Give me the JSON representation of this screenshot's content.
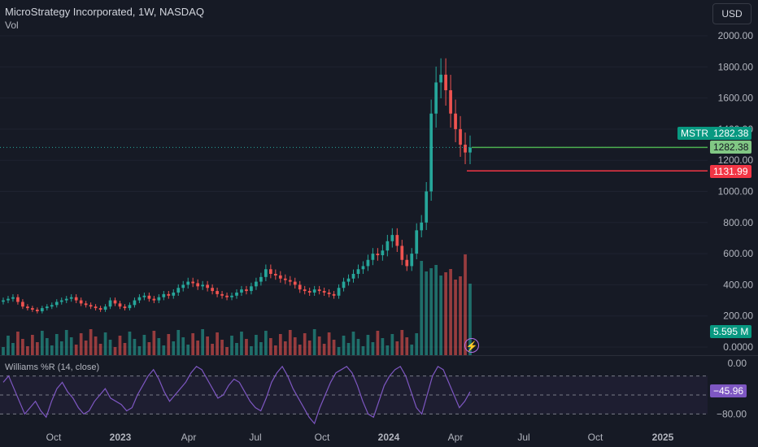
{
  "header": {
    "title": "MicroStrategy Incorporated, 1W, NASDAQ",
    "volume_label": "Vol",
    "currency_button": "USD"
  },
  "price_axis": {
    "labels": [
      "2000.00",
      "1800.00",
      "1600.00",
      "1400.00",
      "1200.00",
      "1000.00",
      "800.00",
      "600.00",
      "400.00",
      "200.00",
      "0.0000"
    ]
  },
  "tags": {
    "symbol": "MSTR",
    "last_price": "1282.38",
    "last_price_2": "1282.38",
    "prev_low": "1131.99",
    "volume": "5.595 M",
    "williams_value": "−45.96"
  },
  "indicator": {
    "title": "Williams %R (14, close)",
    "axis_labels": [
      "0.00",
      "−80.00"
    ],
    "band_upper": -20,
    "band_lower": -80
  },
  "time_axis": {
    "labels": [
      "Oct",
      "2023",
      "Apr",
      "Jul",
      "Oct",
      "2024",
      "Apr",
      "Jul",
      "Oct",
      "2025"
    ]
  },
  "colors": {
    "up": "#26a69a",
    "down": "#ef5350",
    "background": "#161a25",
    "williams_line": "#7e57c2",
    "last_line": "#4caf50",
    "low_line": "#f23645"
  },
  "chart_data": {
    "type": "candlestick",
    "title": "MicroStrategy Incorporated, 1W, NASDAQ",
    "interval": "1W",
    "y_range": [
      0,
      2100
    ],
    "x_labels": [
      "Oct",
      "2023",
      "Apr",
      "Jul",
      "Oct",
      "2024",
      "Apr",
      "Jul",
      "Oct",
      "2025"
    ],
    "candles_close_approx": [
      300,
      310,
      320,
      290,
      260,
      250,
      240,
      230,
      250,
      260,
      270,
      290,
      300,
      310,
      320,
      300,
      280,
      270,
      260,
      250,
      240,
      260,
      300,
      280,
      260,
      250,
      270,
      300,
      320,
      330,
      310,
      300,
      320,
      340,
      330,
      350,
      380,
      400,
      420,
      410,
      390,
      400,
      380,
      360,
      340,
      330,
      320,
      330,
      350,
      370,
      360,
      390,
      420,
      450,
      500,
      470,
      460,
      440,
      430,
      420,
      400,
      370,
      360,
      350,
      370,
      360,
      350,
      340,
      330,
      380,
      420,
      440,
      470,
      500,
      520,
      560,
      600,
      590,
      620,
      680,
      720,
      650,
      560,
      520,
      600,
      750,
      800,
      1000,
      1500,
      1700,
      1750,
      1650,
      1500,
      1400,
      1300,
      1250,
      1282
    ],
    "last_price": 1282.38,
    "williams_r": {
      "name": "Williams %R (14, close)",
      "last_value": -45.96,
      "values": [
        -30,
        -20,
        -40,
        -60,
        -80,
        -70,
        -60,
        -75,
        -85,
        -60,
        -40,
        -30,
        -45,
        -55,
        -70,
        -80,
        -75,
        -60,
        -50,
        -40,
        -55,
        -60,
        -65,
        -75,
        -70,
        -50,
        -35,
        -20,
        -10,
        -25,
        -45,
        -60,
        -50,
        -40,
        -30,
        -15,
        -5,
        -10,
        -25,
        -40,
        -55,
        -50,
        -35,
        -25,
        -30,
        -45,
        -60,
        -70,
        -75,
        -55,
        -30,
        -15,
        -5,
        -20,
        -40,
        -55,
        -70,
        -85,
        -95,
        -70,
        -50,
        -30,
        -15,
        -10,
        -5,
        -15,
        -35,
        -60,
        -80,
        -85,
        -60,
        -35,
        -20,
        -10,
        -5,
        -20,
        -45,
        -70,
        -80,
        -50,
        -20,
        -5,
        -10,
        -30,
        -50,
        -70,
        -60,
        -45
      ]
    }
  }
}
